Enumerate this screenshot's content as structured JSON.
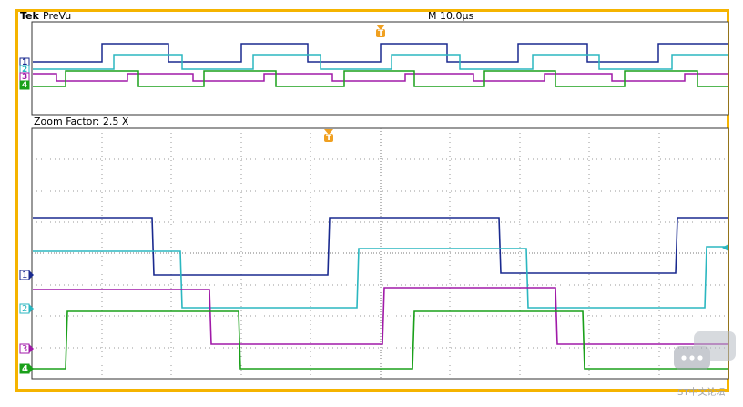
{
  "header": {
    "brand": "Tek",
    "mode": "PreVu",
    "timebase": "M 10.0μs"
  },
  "zoom": {
    "label": "Zoom Factor: 2.5 X"
  },
  "markers": {
    "trigger": "T",
    "ch1": "1",
    "ch2": "2",
    "ch3": "3",
    "ch4": "4"
  },
  "colors": {
    "border": "#f5b400",
    "ch1": "#1a2a8f",
    "ch2": "#2bb7c0",
    "ch3": "#a01aa8",
    "ch4": "#1aa01a",
    "trigger": "#f0a020"
  },
  "watermark": {
    "text": "ST中文论坛"
  }
}
